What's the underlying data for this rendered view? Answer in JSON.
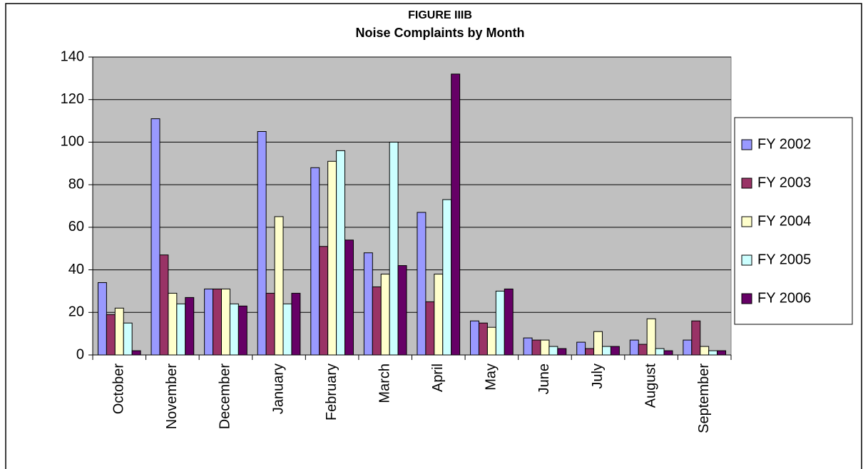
{
  "chart_data": {
    "type": "bar",
    "title": "FIGURE IIIB",
    "subtitle": "Noise Complaints by Month",
    "categories": [
      "October",
      "November",
      "December",
      "January",
      "February",
      "March",
      "April",
      "May",
      "June",
      "July",
      "August",
      "September"
    ],
    "series": [
      {
        "name": "FY 2002",
        "color": "#9999ff",
        "values": [
          34,
          111,
          31,
          105,
          88,
          48,
          67,
          16,
          8,
          6,
          7,
          7
        ]
      },
      {
        "name": "FY 2003",
        "color": "#993366",
        "values": [
          19,
          47,
          31,
          29,
          51,
          32,
          25,
          15,
          7,
          3,
          5,
          16
        ]
      },
      {
        "name": "FY 2004",
        "color": "#ffffcc",
        "values": [
          22,
          29,
          31,
          65,
          91,
          38,
          38,
          13,
          7,
          11,
          17,
          4
        ]
      },
      {
        "name": "FY 2005",
        "color": "#ccffff",
        "values": [
          15,
          24,
          24,
          24,
          96,
          100,
          73,
          30,
          4,
          4,
          3,
          2
        ]
      },
      {
        "name": "FY 2006",
        "color": "#660066",
        "values": [
          2,
          27,
          23,
          29,
          54,
          42,
          132,
          31,
          3,
          4,
          2,
          2
        ]
      }
    ],
    "ylim": [
      0,
      140
    ],
    "yticks": [
      0,
      20,
      40,
      60,
      80,
      100,
      120,
      140
    ],
    "grid": true,
    "legend": "right",
    "plot_background": "#c0c0c0"
  }
}
